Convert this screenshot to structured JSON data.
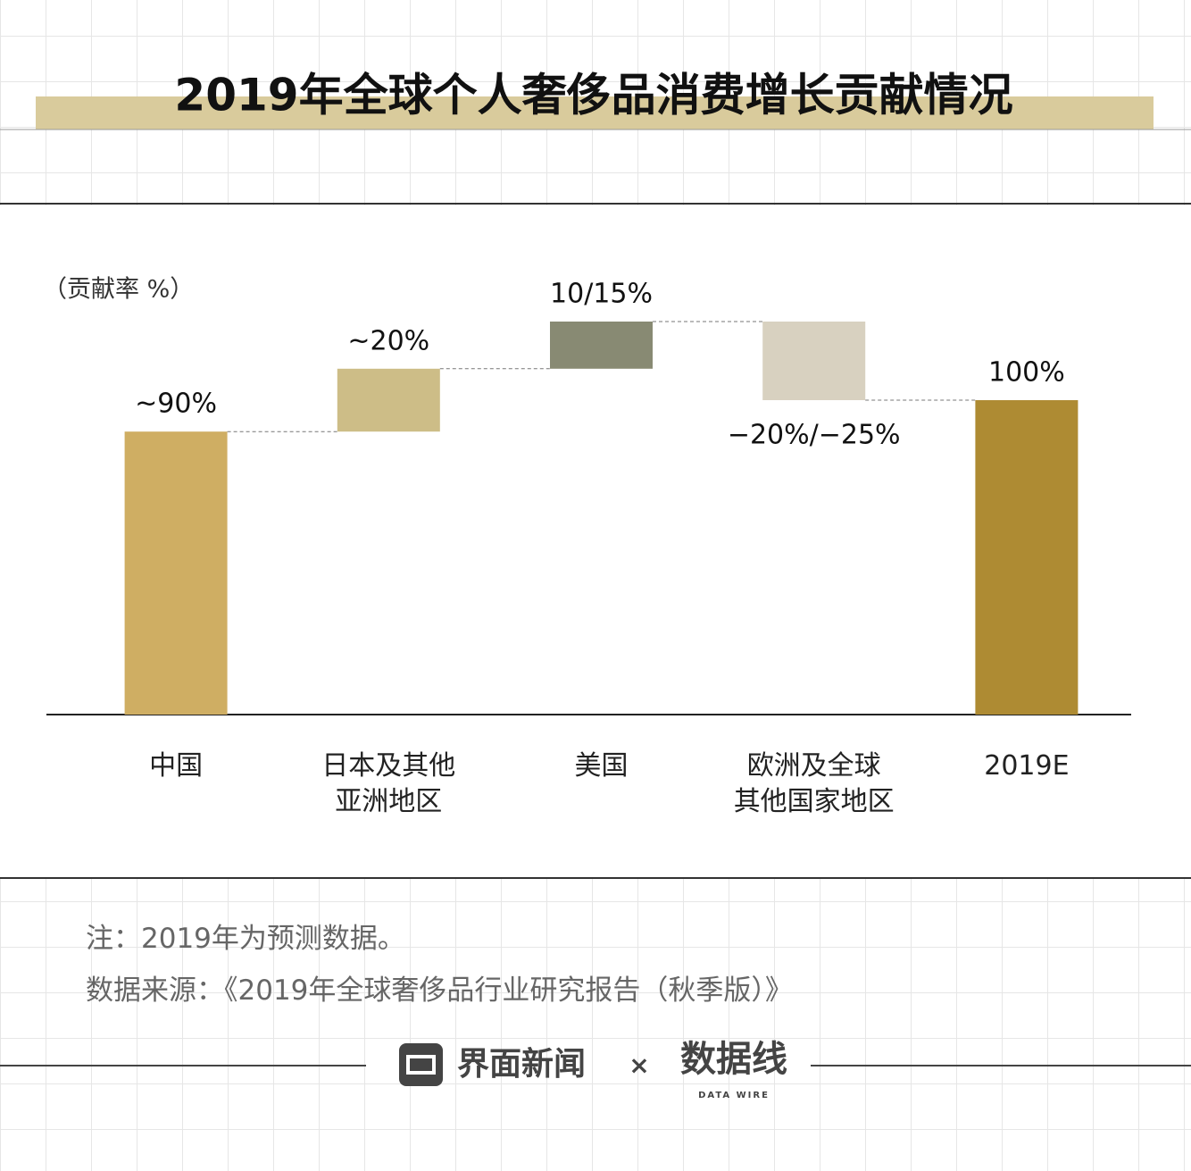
{
  "chart_data": {
    "type": "waterfall",
    "title": "2019年全球个人奢侈品消费增长贡献情况",
    "y_label": "（贡献率 %）",
    "categories": [
      "中国",
      "日本及其他\n亚洲地区",
      "美国",
      "欧洲及全球\n其他国家地区",
      "2019E"
    ],
    "values": [
      90,
      20,
      15,
      -25,
      100
    ],
    "value_labels": [
      "~90%",
      "~20%",
      "10/15%",
      "−20%/−25%",
      "100%"
    ],
    "colors": [
      "#cfae63",
      "#cdbd87",
      "#888a73",
      "#d8d1c0",
      "#ae8b33"
    ]
  },
  "notes": [
    "注：2019年为预测数据。",
    "数据来源：《2019年全球奢侈品行业研究报告（秋季版）》"
  ],
  "footer": {
    "brand": "界面新闻",
    "times": "×",
    "partner": "数据线",
    "partner_sub": "DATA WIRE"
  }
}
